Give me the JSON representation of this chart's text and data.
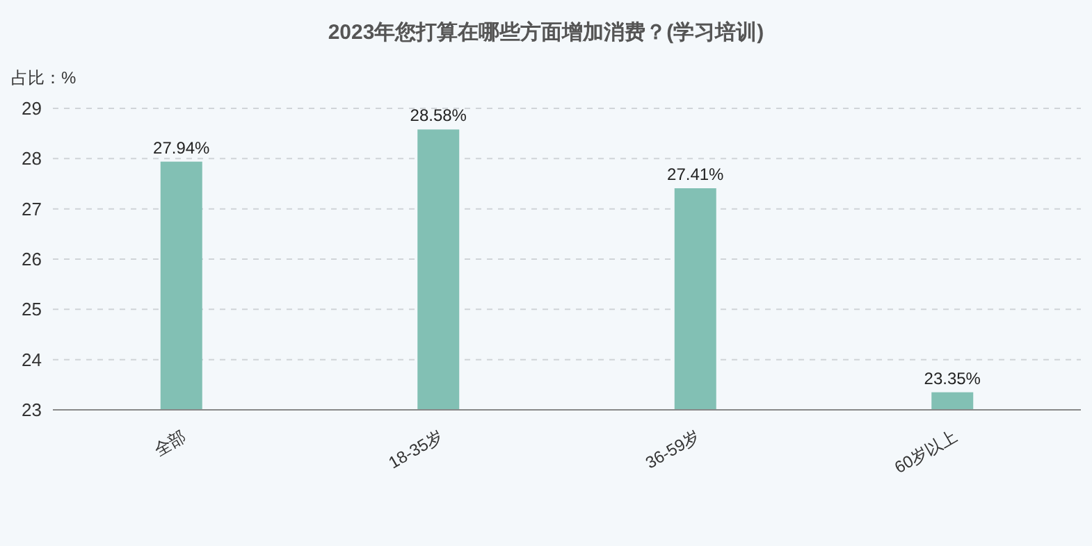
{
  "chart_data": {
    "type": "bar",
    "title": "2023年您打算在哪些方面增加消费？(学习培训)",
    "ylabel": "占比：%",
    "categories": [
      "全部",
      "18-35岁",
      "36-59岁",
      "60岁以上"
    ],
    "values": [
      27.94,
      28.58,
      27.41,
      23.35
    ],
    "value_labels": [
      "27.94%",
      "28.58%",
      "27.41%",
      "23.35%"
    ],
    "color": "#82c0b4",
    "ylim": [
      23,
      29
    ],
    "yticks": [
      23,
      24,
      25,
      26,
      27,
      28,
      29
    ],
    "grid": "y"
  }
}
